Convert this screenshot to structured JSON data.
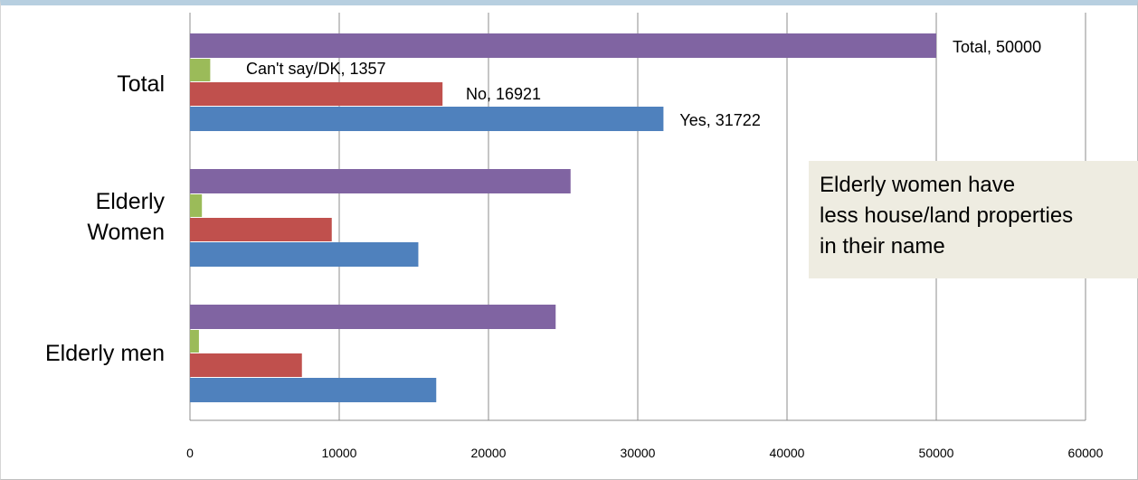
{
  "chart_data": {
    "type": "bar",
    "orientation": "horizontal",
    "categories": [
      "Total",
      "Elderly Women",
      "Elderly men"
    ],
    "category_label_lines": [
      [
        "Total"
      ],
      [
        "Elderly",
        "Women"
      ],
      [
        "Elderly men"
      ]
    ],
    "series": [
      {
        "key": "total",
        "color": "#8064a2",
        "values": [
          50000,
          25500,
          24500
        ]
      },
      {
        "key": "cant_say",
        "color": "#9bbb59",
        "values": [
          1357,
          800,
          600
        ]
      },
      {
        "key": "no",
        "color": "#c0504d",
        "values": [
          16921,
          9500,
          7500
        ]
      },
      {
        "key": "yes",
        "color": "#4f81bd",
        "values": [
          31722,
          15300,
          16500
        ]
      }
    ],
    "data_labels": [
      {
        "series": "total",
        "category": "Total",
        "text": "Total, 50000"
      },
      {
        "series": "cant_say",
        "category": "Total",
        "text": "Can't say/DK, 1357"
      },
      {
        "series": "no",
        "category": "Total",
        "text": "No, 16921"
      },
      {
        "series": "yes",
        "category": "Total",
        "text": "Yes, 31722"
      }
    ],
    "xlim": [
      0,
      60000
    ],
    "xticks": [
      "0",
      "10000",
      "20000",
      "30000",
      "40000",
      "50000",
      "60000"
    ],
    "grid": true,
    "annotation": [
      "Elderly women have",
      "less house/land properties",
      "in their name"
    ]
  }
}
